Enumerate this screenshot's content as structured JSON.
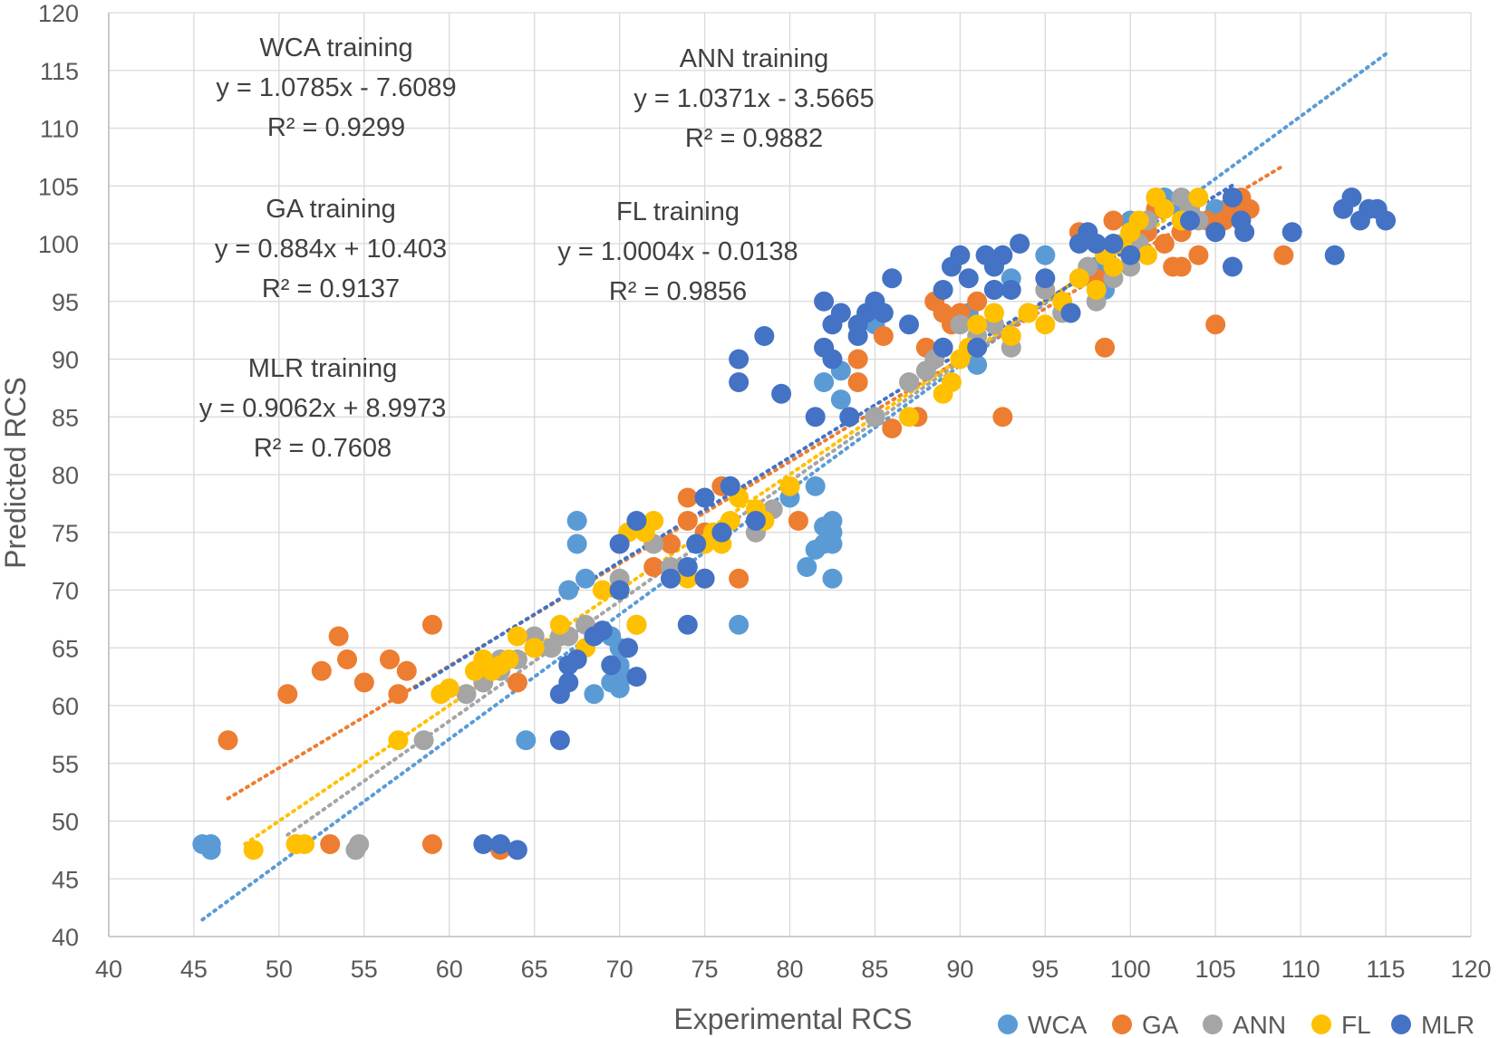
{
  "chart_data": {
    "type": "scatter",
    "xlabel": "Experimental RCS",
    "ylabel": "Predicted RCS",
    "xlim": [
      40,
      120
    ],
    "ylim": [
      40,
      120
    ],
    "xticks": [
      40,
      45,
      50,
      55,
      60,
      65,
      70,
      75,
      80,
      85,
      90,
      95,
      100,
      105,
      110,
      115,
      120
    ],
    "yticks": [
      40,
      45,
      50,
      55,
      60,
      65,
      70,
      75,
      80,
      85,
      90,
      95,
      100,
      105,
      110,
      115,
      120
    ],
    "grid": true,
    "legend_position": "bottom-right",
    "series": [
      {
        "name": "WCA",
        "color": "#5B9BD5",
        "trendline": {
          "slope": 1.0785,
          "intercept": -7.6089,
          "x_range": [
            45.5,
            115
          ]
        },
        "points": [
          [
            45.5,
            48
          ],
          [
            46,
            48
          ],
          [
            46,
            47.5
          ],
          [
            64.5,
            57
          ],
          [
            67,
            70
          ],
          [
            67.5,
            74
          ],
          [
            67.5,
            76
          ],
          [
            68,
            71
          ],
          [
            68.5,
            61
          ],
          [
            69.5,
            66
          ],
          [
            69.5,
            62
          ],
          [
            70,
            63
          ],
          [
            70,
            61.5
          ],
          [
            70,
            65
          ],
          [
            70,
            63.5
          ],
          [
            70.2,
            62.5
          ],
          [
            77,
            67
          ],
          [
            80,
            78
          ],
          [
            81,
            72
          ],
          [
            81.5,
            73.5
          ],
          [
            81.5,
            79
          ],
          [
            82,
            74
          ],
          [
            82,
            75.5
          ],
          [
            82.5,
            71
          ],
          [
            82.5,
            75
          ],
          [
            82.5,
            76
          ],
          [
            82.5,
            74
          ],
          [
            82,
            88
          ],
          [
            83,
            86.5
          ],
          [
            83,
            89
          ],
          [
            85,
            85
          ],
          [
            85,
            93
          ],
          [
            90.5,
            94
          ],
          [
            91,
            89.5
          ],
          [
            92,
            96
          ],
          [
            93,
            97
          ],
          [
            95,
            99
          ],
          [
            98,
            98
          ],
          [
            98.5,
            96
          ],
          [
            100,
            102
          ],
          [
            102,
            104
          ],
          [
            103,
            103
          ],
          [
            105,
            103
          ]
        ]
      },
      {
        "name": "GA",
        "color": "#ED7D31",
        "trendline": {
          "slope": 0.884,
          "intercept": 10.403,
          "x_range": [
            47,
            109
          ]
        },
        "points": [
          [
            47,
            57
          ],
          [
            50.5,
            61
          ],
          [
            51,
            48
          ],
          [
            52.5,
            63
          ],
          [
            53,
            48
          ],
          [
            53.5,
            66
          ],
          [
            54,
            64
          ],
          [
            55,
            62
          ],
          [
            56.5,
            64
          ],
          [
            57,
            61
          ],
          [
            57.5,
            63
          ],
          [
            59,
            67
          ],
          [
            59,
            48
          ],
          [
            63,
            47.5
          ],
          [
            64,
            62
          ],
          [
            65,
            65
          ],
          [
            71,
            67
          ],
          [
            72,
            72
          ],
          [
            73,
            74
          ],
          [
            74,
            78
          ],
          [
            74,
            76
          ],
          [
            75,
            71
          ],
          [
            75,
            75
          ],
          [
            76,
            75
          ],
          [
            76,
            79
          ],
          [
            77,
            71
          ],
          [
            78,
            76
          ],
          [
            78,
            75
          ],
          [
            80.5,
            76
          ],
          [
            84,
            88
          ],
          [
            84,
            90
          ],
          [
            85.5,
            92
          ],
          [
            86,
            84
          ],
          [
            87.5,
            85
          ],
          [
            88,
            91
          ],
          [
            88.5,
            95
          ],
          [
            89,
            94
          ],
          [
            89.5,
            93
          ],
          [
            90,
            94
          ],
          [
            91,
            95
          ],
          [
            92.5,
            85
          ],
          [
            97,
            101
          ],
          [
            98,
            100
          ],
          [
            98,
            97
          ],
          [
            98.5,
            91
          ],
          [
            99,
            102
          ],
          [
            100,
            101
          ],
          [
            101,
            101
          ],
          [
            101.5,
            103
          ],
          [
            102,
            100
          ],
          [
            102.5,
            98
          ],
          [
            103,
            98
          ],
          [
            103,
            101
          ],
          [
            104,
            99
          ],
          [
            104.5,
            102
          ],
          [
            105,
            93
          ],
          [
            105.5,
            102
          ],
          [
            106,
            103
          ],
          [
            106.5,
            104
          ],
          [
            107,
            103
          ],
          [
            109,
            99
          ]
        ]
      },
      {
        "name": "ANN",
        "color": "#A5A5A5",
        "trendline": {
          "slope": 1.0371,
          "intercept": -3.5665,
          "x_range": [
            50.5,
            101
          ]
        },
        "points": [
          [
            54.5,
            47.5
          ],
          [
            54.7,
            48
          ],
          [
            58.5,
            57
          ],
          [
            61,
            61
          ],
          [
            62,
            62
          ],
          [
            63,
            64
          ],
          [
            63,
            63
          ],
          [
            64,
            64
          ],
          [
            65,
            66
          ],
          [
            66,
            65
          ],
          [
            66.5,
            66
          ],
          [
            67,
            66
          ],
          [
            68,
            67
          ],
          [
            70,
            71
          ],
          [
            72,
            74
          ],
          [
            73,
            72
          ],
          [
            75,
            74
          ],
          [
            76,
            75
          ],
          [
            78,
            75
          ],
          [
            79,
            77
          ],
          [
            80,
            79
          ],
          [
            85,
            85
          ],
          [
            87,
            88
          ],
          [
            88,
            89
          ],
          [
            88.5,
            90
          ],
          [
            89,
            91
          ],
          [
            90,
            93
          ],
          [
            91,
            92
          ],
          [
            92,
            93
          ],
          [
            93,
            91
          ],
          [
            94,
            94
          ],
          [
            95,
            96
          ],
          [
            96,
            94
          ],
          [
            97,
            97
          ],
          [
            97.5,
            98
          ],
          [
            98,
            95
          ],
          [
            98.5,
            99
          ],
          [
            99,
            97
          ],
          [
            100,
            98
          ],
          [
            100.5,
            100
          ],
          [
            101,
            102
          ],
          [
            101.5,
            104
          ],
          [
            102,
            103
          ],
          [
            103,
            104
          ],
          [
            103.5,
            103
          ],
          [
            104,
            102
          ]
        ]
      },
      {
        "name": "FL",
        "color": "#FFC000",
        "trendline": {
          "slope": 1.0004,
          "intercept": -0.0138,
          "x_range": [
            48,
            102
          ]
        },
        "points": [
          [
            48.5,
            47.5
          ],
          [
            51,
            48
          ],
          [
            51.5,
            48
          ],
          [
            57,
            57
          ],
          [
            59.5,
            61
          ],
          [
            60,
            61.5
          ],
          [
            61.5,
            63
          ],
          [
            62,
            64
          ],
          [
            62.5,
            63
          ],
          [
            63,
            63.5
          ],
          [
            63.5,
            64
          ],
          [
            64,
            66
          ],
          [
            65,
            65
          ],
          [
            66.5,
            67
          ],
          [
            68,
            65
          ],
          [
            69,
            70
          ],
          [
            70,
            70
          ],
          [
            70.5,
            75
          ],
          [
            71,
            67
          ],
          [
            71.5,
            75
          ],
          [
            72,
            76
          ],
          [
            74,
            71
          ],
          [
            75,
            74
          ],
          [
            75.5,
            75
          ],
          [
            76,
            74
          ],
          [
            76.5,
            76
          ],
          [
            77,
            78
          ],
          [
            78,
            77
          ],
          [
            78.5,
            76
          ],
          [
            80,
            79
          ],
          [
            87,
            85
          ],
          [
            89,
            87
          ],
          [
            89.5,
            88
          ],
          [
            90,
            90
          ],
          [
            90.5,
            91
          ],
          [
            91,
            93
          ],
          [
            92,
            94
          ],
          [
            93,
            92
          ],
          [
            94,
            94
          ],
          [
            95,
            93
          ],
          [
            96,
            95
          ],
          [
            96.5,
            94
          ],
          [
            97,
            97
          ],
          [
            98,
            96
          ],
          [
            98.5,
            99
          ],
          [
            99,
            98
          ],
          [
            99.5,
            100
          ],
          [
            100,
            101
          ],
          [
            100.5,
            102
          ],
          [
            101,
            99
          ],
          [
            101.5,
            104
          ],
          [
            102,
            103
          ],
          [
            103,
            102
          ],
          [
            104,
            104
          ]
        ]
      },
      {
        "name": "MLR",
        "color": "#4472C4",
        "trendline": {
          "slope": 0.9062,
          "intercept": 8.9973,
          "x_range": [
            58,
            106
          ]
        },
        "points": [
          [
            62,
            48
          ],
          [
            63,
            48
          ],
          [
            64,
            47.5
          ],
          [
            66.5,
            57
          ],
          [
            66.5,
            61
          ],
          [
            67,
            62
          ],
          [
            67,
            63.5
          ],
          [
            67.5,
            64
          ],
          [
            68.5,
            66
          ],
          [
            69,
            66.5
          ],
          [
            69.5,
            63.5
          ],
          [
            70,
            74
          ],
          [
            70,
            70
          ],
          [
            70.5,
            65
          ],
          [
            71,
            76
          ],
          [
            71,
            62.5
          ],
          [
            73,
            71
          ],
          [
            74,
            67
          ],
          [
            74,
            72
          ],
          [
            74.5,
            74
          ],
          [
            75,
            71
          ],
          [
            75,
            78
          ],
          [
            76,
            75
          ],
          [
            76.5,
            79
          ],
          [
            77,
            88
          ],
          [
            77,
            90
          ],
          [
            78,
            76
          ],
          [
            78.5,
            92
          ],
          [
            79.5,
            87
          ],
          [
            81.5,
            85
          ],
          [
            82,
            91
          ],
          [
            82,
            95
          ],
          [
            82.5,
            90
          ],
          [
            82.5,
            93
          ],
          [
            83,
            94
          ],
          [
            83.5,
            85
          ],
          [
            84,
            92
          ],
          [
            84,
            93
          ],
          [
            84.5,
            94
          ],
          [
            85,
            95
          ],
          [
            85.5,
            94
          ],
          [
            86,
            97
          ],
          [
            87,
            93
          ],
          [
            89,
            91
          ],
          [
            89,
            96
          ],
          [
            89.5,
            98
          ],
          [
            90,
            99
          ],
          [
            90.5,
            97
          ],
          [
            91,
            91
          ],
          [
            91.5,
            99
          ],
          [
            92,
            98
          ],
          [
            92,
            96
          ],
          [
            92.5,
            99
          ],
          [
            93,
            96
          ],
          [
            93.5,
            100
          ],
          [
            95,
            97
          ],
          [
            96.5,
            94
          ],
          [
            97,
            100
          ],
          [
            97.5,
            101
          ],
          [
            98,
            100
          ],
          [
            99,
            100
          ],
          [
            100,
            99
          ],
          [
            103.5,
            102
          ],
          [
            105,
            101
          ],
          [
            106,
            98
          ],
          [
            106,
            104
          ],
          [
            106.5,
            102
          ],
          [
            106.7,
            101
          ],
          [
            109.5,
            101
          ],
          [
            112,
            99
          ],
          [
            112.5,
            103
          ],
          [
            113,
            104
          ],
          [
            113.5,
            102
          ],
          [
            114,
            103
          ],
          [
            114.5,
            103
          ],
          [
            115,
            102
          ]
        ]
      }
    ],
    "annotations": [
      {
        "id": "wca",
        "lines": [
          "WCA training",
          "y = 1.0785x - 7.6089",
          "R² = 0.9299"
        ]
      },
      {
        "id": "ann",
        "lines": [
          "ANN training",
          "y = 1.0371x - 3.5665",
          "R² = 0.9882"
        ]
      },
      {
        "id": "ga",
        "lines": [
          "GA training",
          "y = 0.884x + 10.403",
          "R² = 0.9137"
        ]
      },
      {
        "id": "fl",
        "lines": [
          "FL training",
          "y = 1.0004x - 0.0138",
          "R² = 0.9856"
        ]
      },
      {
        "id": "mlr",
        "lines": [
          "MLR training",
          "y = 0.9062x + 8.9973",
          "R² = 0.7608"
        ]
      }
    ]
  }
}
